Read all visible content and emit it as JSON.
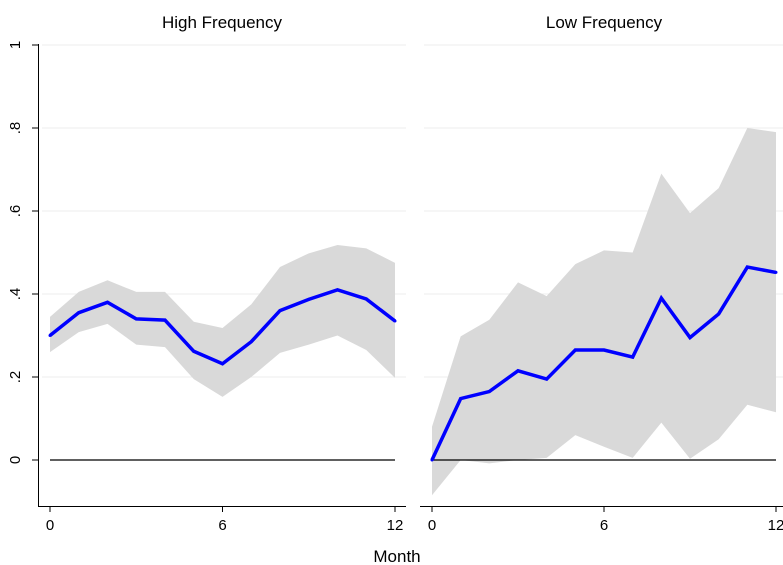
{
  "chart_data": {
    "type": "line",
    "xlabel": "Month",
    "ylabel": "",
    "ylim": [
      -0.08,
      1.02
    ],
    "y_ticks": [
      {
        "value": 0,
        "label": "0"
      },
      {
        "value": 0.2,
        "label": ".2"
      },
      {
        "value": 0.4,
        "label": ".4"
      },
      {
        "value": 0.6,
        "label": ".6"
      },
      {
        "value": 0.8,
        "label": ".8"
      },
      {
        "value": 1,
        "label": "1"
      }
    ],
    "x_ticks": [
      {
        "value": 0,
        "label": "0"
      },
      {
        "value": 6,
        "label": "6"
      },
      {
        "value": 12,
        "label": "12"
      }
    ],
    "xlim": [
      -0.3,
      12.3
    ],
    "grid": true,
    "reference_line": 0,
    "colors": {
      "line": "#0000ff",
      "band": "#d9d9d9",
      "grid": "#eeeeee",
      "reference": "#000000"
    },
    "panels": [
      {
        "title": "High Frequency",
        "x": [
          0,
          1,
          2,
          3,
          4,
          5,
          6,
          7,
          8,
          9,
          10,
          11,
          12
        ],
        "estimate": [
          0.3,
          0.355,
          0.38,
          0.34,
          0.337,
          0.262,
          0.232,
          0.285,
          0.36,
          0.387,
          0.41,
          0.388,
          0.335
        ],
        "upper": [
          0.345,
          0.405,
          0.433,
          0.405,
          0.405,
          0.333,
          0.318,
          0.375,
          0.465,
          0.498,
          0.518,
          0.51,
          0.475
        ],
        "lower": [
          0.26,
          0.308,
          0.328,
          0.278,
          0.272,
          0.195,
          0.152,
          0.2,
          0.258,
          0.278,
          0.3,
          0.265,
          0.198
        ]
      },
      {
        "title": "Low Frequency",
        "x": [
          0,
          1,
          2,
          3,
          4,
          5,
          6,
          7,
          8,
          9,
          10,
          11,
          12
        ],
        "estimate": [
          0.0,
          0.148,
          0.165,
          0.215,
          0.195,
          0.265,
          0.265,
          0.248,
          0.39,
          0.295,
          0.352,
          0.465,
          0.452
        ],
        "upper": [
          0.08,
          0.298,
          0.338,
          0.428,
          0.395,
          0.472,
          0.505,
          0.5,
          0.69,
          0.595,
          0.655,
          0.8,
          0.79
        ],
        "lower": [
          -0.085,
          0.0,
          -0.008,
          0.0,
          0.005,
          0.06,
          0.032,
          0.005,
          0.09,
          0.003,
          0.05,
          0.133,
          0.115
        ]
      }
    ]
  }
}
